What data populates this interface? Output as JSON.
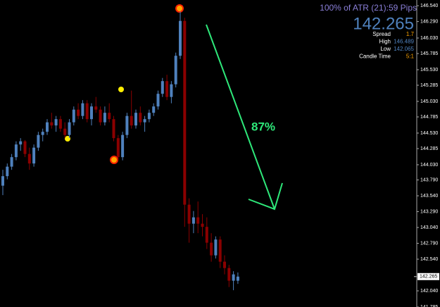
{
  "chart_data": {
    "type": "candlestick",
    "up_color": "#4f81bd",
    "down_color": "#8b0000",
    "ylim": [
      141.785,
      146.63
    ],
    "yticks": [
      {
        "value": 146.54,
        "label": "146.540"
      },
      {
        "value": 146.29,
        "label": "146.290"
      },
      {
        "value": 146.03,
        "label": "146.030"
      },
      145.785,
      {
        "value": 145.53,
        "label": "145.530"
      },
      145.285,
      {
        "value": 145.03,
        "label": "145.030"
      },
      144.785,
      {
        "value": 144.53,
        "label": "144.530"
      },
      144.285,
      {
        "value": 144.03,
        "label": "144.030"
      },
      {
        "value": 143.79,
        "label": "143.790"
      },
      {
        "value": 143.54,
        "label": "143.540"
      },
      {
        "value": 143.29,
        "label": "143.290"
      },
      {
        "value": 143.04,
        "label": "143.040"
      },
      {
        "value": 142.79,
        "label": "142.790"
      },
      {
        "value": 142.54,
        "label": "142.540"
      },
      {
        "value": 142.04,
        "label": "142.040"
      },
      141.785
    ],
    "open": [
      143.7,
      143.85,
      144.0,
      144.15,
      144.35,
      144.4,
      144.2,
      144.05,
      144.3,
      144.5,
      144.55,
      144.7,
      144.65,
      144.75,
      144.6,
      144.5,
      144.7,
      144.9,
      144.8,
      145.0,
      144.75,
      144.95,
      144.9,
      144.7,
      144.85,
      144.75,
      144.45,
      144.15,
      144.5,
      144.8,
      144.65,
      144.85,
      144.7,
      144.75,
      144.85,
      144.95,
      145.15,
      145.35,
      145.1,
      145.3,
      145.75,
      146.3,
      143.4,
      143.1,
      143.2,
      143.1,
      143.05,
      142.8,
      142.6,
      142.85,
      142.5,
      142.4,
      142.2,
      142.2
    ],
    "high": [
      143.95,
      144.05,
      144.2,
      144.4,
      144.45,
      144.42,
      144.3,
      144.35,
      144.55,
      144.6,
      144.75,
      144.85,
      144.8,
      144.8,
      144.7,
      144.75,
      144.95,
      145.0,
      145.05,
      145.05,
      145.0,
      145.1,
      144.95,
      144.95,
      145.0,
      144.8,
      144.5,
      144.55,
      144.85,
      145.2,
      144.9,
      144.95,
      144.8,
      144.9,
      145.0,
      145.2,
      145.4,
      145.45,
      145.35,
      145.8,
      146.45,
      146.35,
      143.5,
      143.3,
      143.45,
      143.25,
      143.2,
      142.95,
      142.9,
      142.9,
      142.6,
      142.45,
      142.35,
      142.33
    ],
    "low": [
      143.55,
      143.8,
      143.95,
      144.1,
      144.25,
      144.15,
      143.95,
      144.0,
      144.25,
      144.4,
      144.5,
      144.6,
      144.55,
      144.55,
      144.45,
      144.45,
      144.65,
      144.75,
      144.75,
      144.7,
      144.65,
      144.85,
      144.65,
      144.65,
      144.7,
      144.4,
      144.1,
      144.1,
      144.45,
      144.6,
      144.6,
      144.65,
      144.55,
      144.7,
      144.8,
      144.9,
      145.1,
      145.05,
      145.0,
      145.25,
      145.7,
      143.05,
      142.8,
      142.95,
      142.95,
      142.9,
      142.7,
      142.5,
      142.55,
      142.4,
      142.3,
      142.1,
      142.05,
      142.15
    ],
    "close": [
      143.85,
      144.0,
      144.15,
      144.35,
      144.4,
      144.2,
      144.05,
      144.3,
      144.5,
      144.55,
      144.7,
      144.65,
      144.75,
      144.6,
      144.5,
      144.7,
      144.9,
      144.8,
      145.0,
      144.75,
      144.95,
      144.9,
      144.7,
      144.85,
      144.75,
      144.45,
      144.15,
      144.5,
      144.8,
      144.65,
      144.85,
      144.7,
      144.75,
      144.85,
      144.95,
      145.15,
      145.35,
      145.1,
      145.3,
      145.75,
      146.3,
      143.4,
      143.1,
      143.2,
      143.1,
      143.05,
      142.8,
      142.6,
      142.85,
      142.5,
      142.4,
      142.2,
      142.3,
      142.265
    ],
    "bid": 142.265,
    "atr_label": "100% of ATR (21):59 Pips",
    "info_rows": [
      {
        "label": "Spread",
        "value": 1.7,
        "color": "#ffa500"
      },
      {
        "label": "High",
        "value": 146.489,
        "color": "#4f81bd"
      },
      {
        "label": "Low",
        "value": 142.065,
        "color": "#4f81bd"
      },
      {
        "label": "Candle Time",
        "value": "5:1",
        "color": "#ffa500"
      }
    ],
    "annotation": "87%"
  }
}
